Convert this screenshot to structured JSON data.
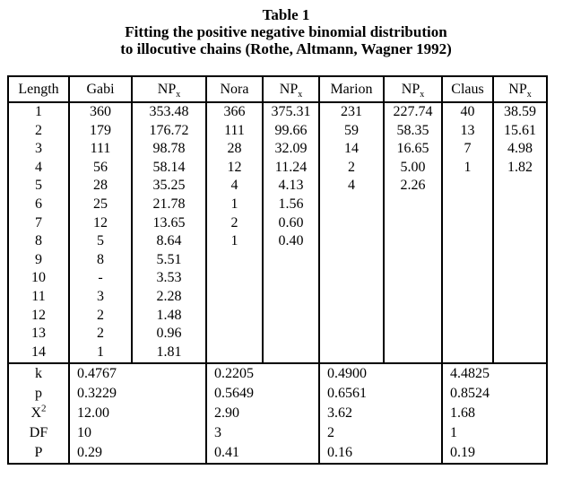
{
  "title": {
    "line1": "Table 1",
    "line2": "Fitting the positive negative binomial distribution",
    "line3": "to illocutive chains (Rothe, Altmann, Wagner 1992)"
  },
  "table": {
    "columns": [
      {
        "label": "Length",
        "sub": ""
      },
      {
        "label": "Gabi",
        "sub": ""
      },
      {
        "label": "NP",
        "sub": "x"
      },
      {
        "label": "Nora",
        "sub": ""
      },
      {
        "label": "NP",
        "sub": "x"
      },
      {
        "label": "Marion",
        "sub": ""
      },
      {
        "label": "NP",
        "sub": "x"
      },
      {
        "label": "Claus",
        "sub": ""
      },
      {
        "label": "NP",
        "sub": "x"
      }
    ],
    "body_columns": [
      [
        "1",
        "2",
        "3",
        "4",
        "5",
        "6",
        "7",
        "8",
        "9",
        "10",
        "11",
        "12",
        "13",
        "14"
      ],
      [
        "360",
        "179",
        "111",
        "56",
        "28",
        "25",
        "12",
        "5",
        "8",
        "-",
        "3",
        "2",
        "2",
        "1"
      ],
      [
        "353.48",
        "176.72",
        "98.78",
        "58.14",
        "35.25",
        "21.78",
        "13.65",
        "8.64",
        "5.51",
        "3.53",
        "2.28",
        "1.48",
        "0.96",
        "1.81"
      ],
      [
        "366",
        "111",
        "28",
        "12",
        "4",
        "1",
        "2",
        "1",
        "",
        "",
        "",
        "",
        "",
        ""
      ],
      [
        "375.31",
        "99.66",
        "32.09",
        "11.24",
        "4.13",
        "1.56",
        "0.60",
        "0.40",
        "",
        "",
        "",
        "",
        "",
        ""
      ],
      [
        "231",
        "59",
        "14",
        "2",
        "4",
        "",
        "",
        "",
        "",
        "",
        "",
        "",
        "",
        ""
      ],
      [
        "227.74",
        "58.35",
        "16.65",
        "5.00",
        "2.26",
        "",
        "",
        "",
        "",
        "",
        "",
        "",
        "",
        ""
      ],
      [
        "40",
        "13",
        "7",
        "1",
        "",
        "",
        "",
        "",
        "",
        "",
        "",
        "",
        "",
        ""
      ],
      [
        "38.59",
        "15.61",
        "4.98",
        "1.82",
        "",
        "",
        "",
        "",
        "",
        "",
        "",
        "",
        "",
        ""
      ]
    ],
    "stats": {
      "labels": [
        {
          "text": "k",
          "sup": ""
        },
        {
          "text": "p",
          "sup": ""
        },
        {
          "text": "X",
          "sup": "2"
        },
        {
          "text": "DF",
          "sup": ""
        },
        {
          "text": "P",
          "sup": ""
        }
      ],
      "groups": [
        {
          "name": "Gabi",
          "values": [
            "0.4767",
            "0.3229",
            "12.00",
            "10",
            "0.29"
          ]
        },
        {
          "name": "Nora",
          "values": [
            "0.2205",
            "0.5649",
            "2.90",
            "3",
            "0.41"
          ]
        },
        {
          "name": "Marion",
          "values": [
            "0.4900",
            "0.6561",
            "3.62",
            "2",
            "0.16"
          ]
        },
        {
          "name": "Claus",
          "values": [
            "4.4825",
            "0.8524",
            "1.68",
            "1",
            "0.19"
          ]
        }
      ]
    }
  },
  "colors": {
    "text": "#000000",
    "background": "#ffffff",
    "border": "#000000"
  }
}
